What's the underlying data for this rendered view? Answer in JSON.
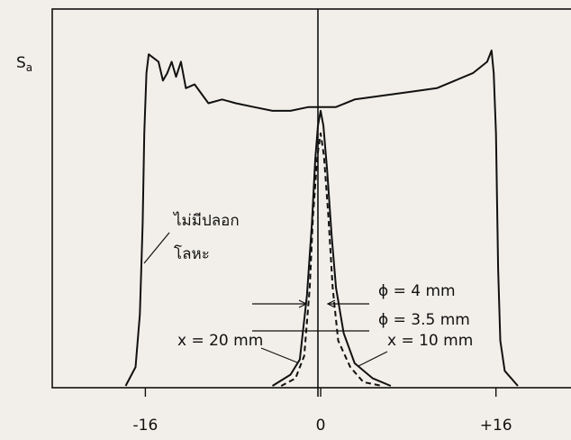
{
  "chart_data": {
    "type": "line",
    "ylabel": "S",
    "ylabel_subscript": "a",
    "xlim": [
      -24.5,
      24
    ],
    "ylim": [
      0,
      100
    ],
    "xticks": [
      -16,
      0,
      {
        "value": 16,
        "label": "+16"
      }
    ],
    "annotations": [
      "ไม่มีปลอก",
      "โลหะ",
      "ϕ = 4 mm",
      "ϕ = 3.5 mm",
      "x = 20 mm",
      "x = 10 mm"
    ],
    "series": [
      {
        "color": "#111111",
        "style": "solid",
        "x": [
          -17.8,
          -16.9,
          -16.5,
          -16.25,
          -16.1,
          -15.9,
          -15.7,
          -15.25,
          -14.8,
          -14.4,
          -14,
          -13.6,
          -13.2,
          -12.75,
          -12.3,
          -11.5,
          -10.25,
          -9,
          -7.75,
          -6.1,
          -4.4,
          -2.75,
          -1.1,
          0,
          1.4,
          3.1,
          5.6,
          8.1,
          10.6,
          12.25,
          13.9,
          15.2,
          15.6,
          15.8,
          16,
          16.2,
          16.4,
          16.8,
          18
        ],
        "values": [
          0,
          5,
          19,
          43,
          67,
          83,
          88,
          87,
          86,
          81,
          83,
          86,
          82,
          86,
          79,
          80,
          75,
          76,
          75,
          74,
          73,
          73,
          74,
          74,
          74,
          76,
          77,
          78,
          79,
          81,
          83,
          86,
          89,
          83,
          67,
          31,
          12,
          4,
          0
        ]
      },
      {
        "color": "#111111",
        "style": "solid",
        "x": [
          -4.4,
          -2.75,
          -1.9,
          -1.25,
          -0.8,
          -0.5,
          -0.25,
          0,
          0.25,
          0.6,
          1,
          1.4,
          2.1,
          3.1,
          4.75,
          6.4
        ],
        "values": [
          0,
          3,
          7,
          24,
          43,
          60,
          69,
          73,
          69,
          57,
          40,
          26,
          14,
          6,
          2,
          0
        ]
      },
      {
        "color": "#111111",
        "style": "dashed",
        "x": [
          -3.6,
          -2.3,
          -1.5,
          -1,
          -0.7,
          -0.3,
          0,
          0.3,
          0.7,
          1.1,
          1.6,
          2.7,
          3.9,
          5.6
        ],
        "values": [
          0,
          2,
          8,
          26,
          45,
          61,
          67,
          61,
          45,
          26,
          12,
          5,
          1,
          0
        ]
      }
    ]
  }
}
